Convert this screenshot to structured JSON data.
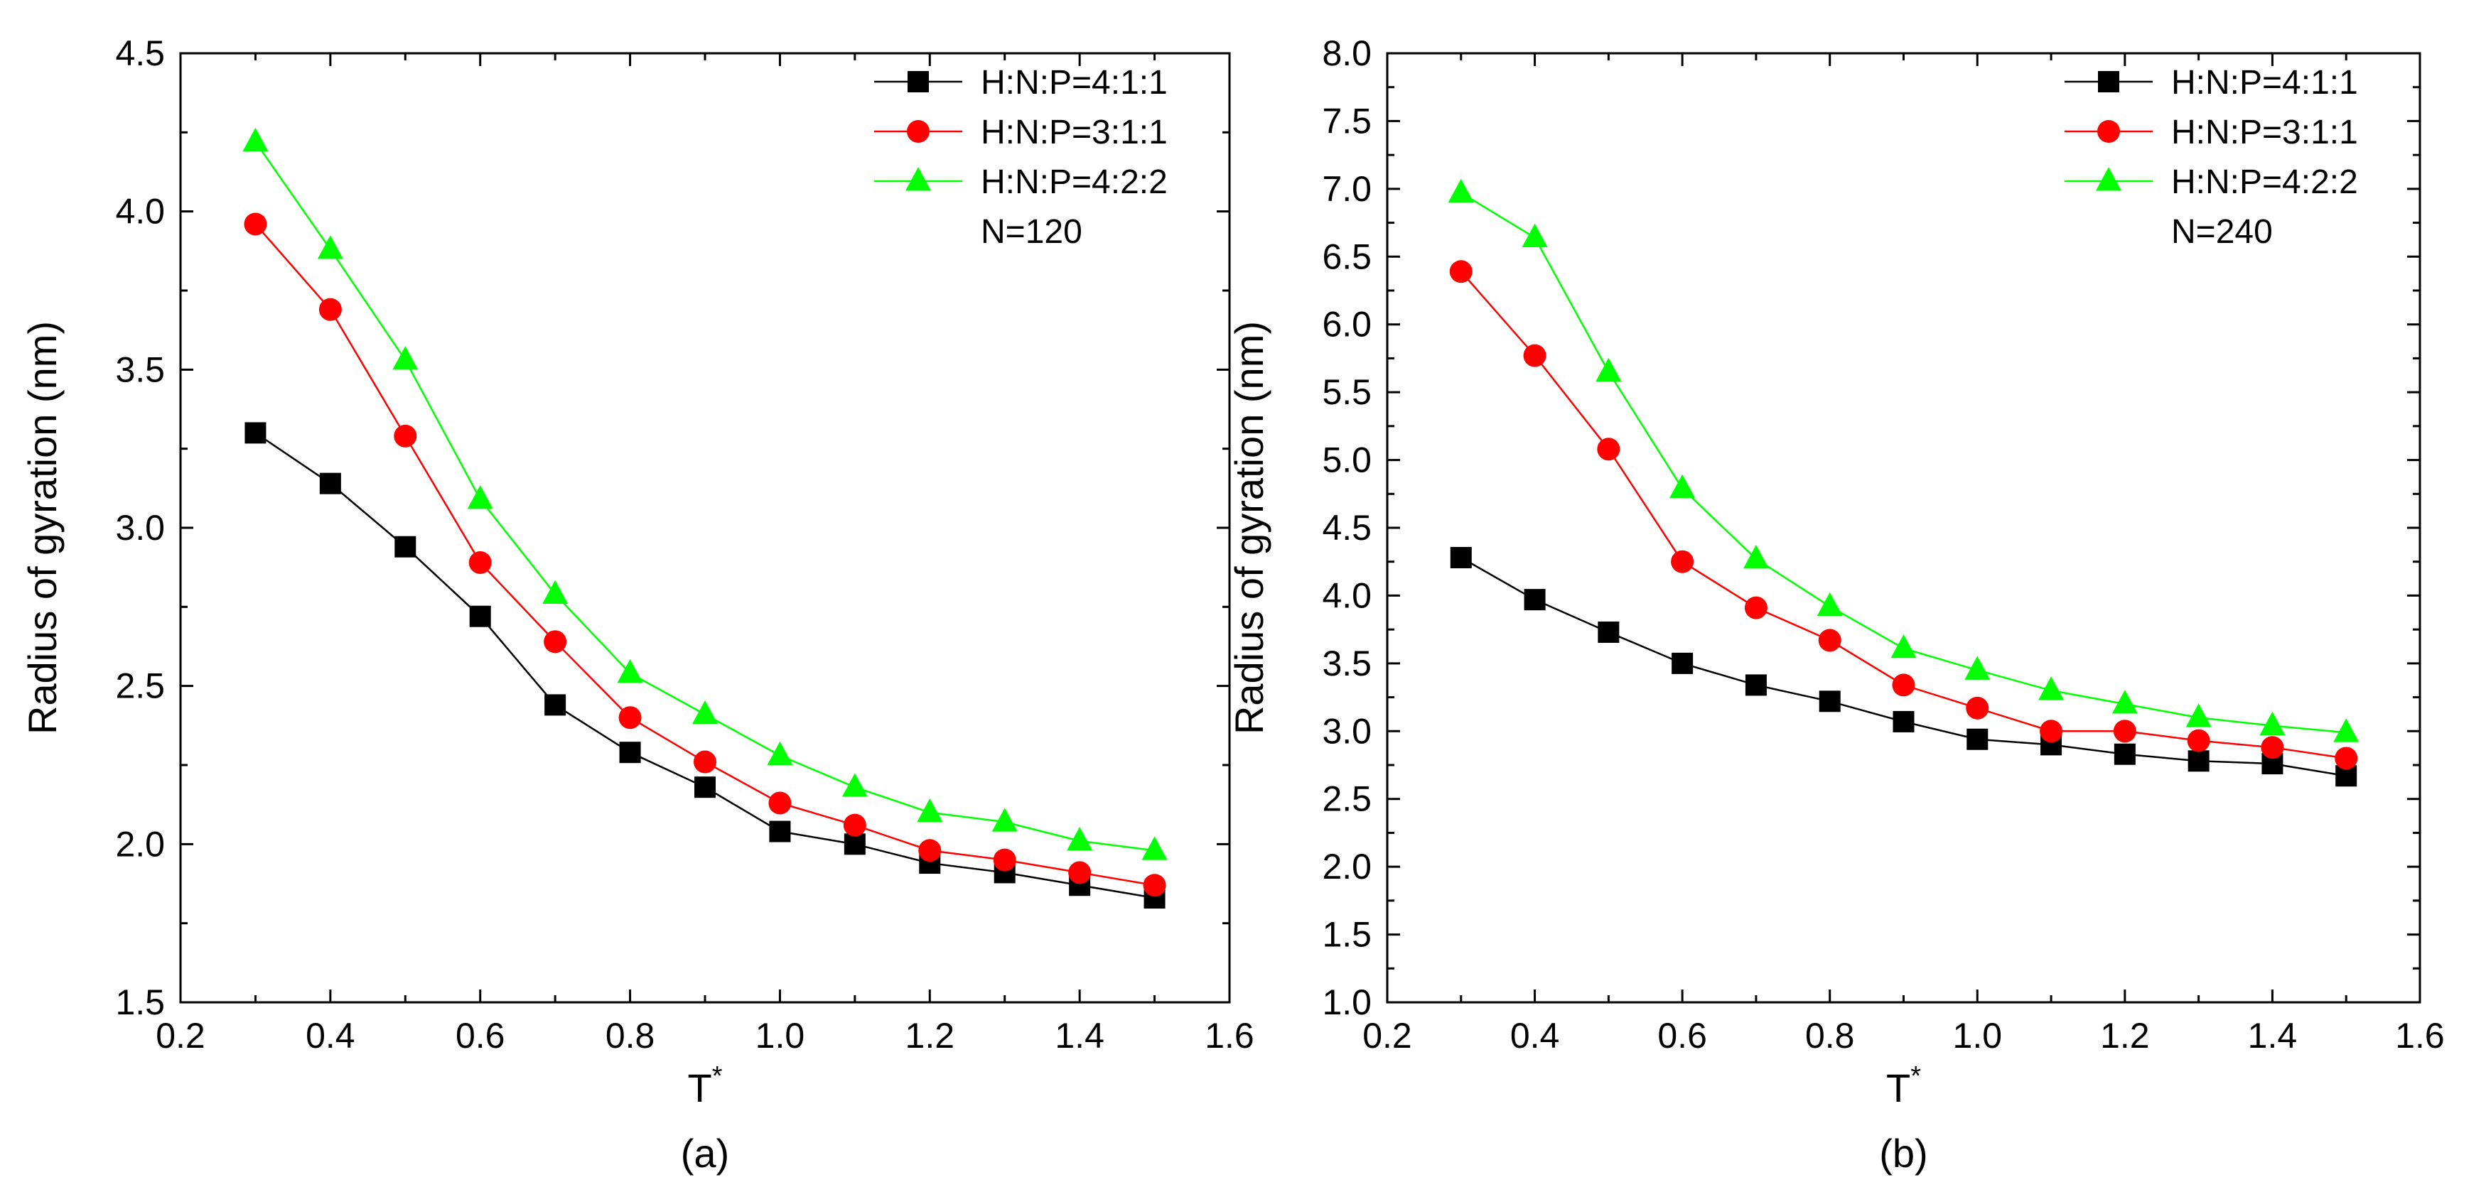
{
  "chart_data": [
    {
      "type": "line",
      "panel_label": "(a)",
      "xlabel": "T",
      "xlabel_superscript": "*",
      "ylabel": "Radius of gyration (nm)",
      "xlim": [
        0.2,
        1.6
      ],
      "ylim": [
        1.5,
        4.5
      ],
      "xticks": [
        "0.2",
        "0.4",
        "0.6",
        "0.8",
        "1.0",
        "1.2",
        "1.4",
        "1.6"
      ],
      "yticks": [
        "1.5",
        "2.0",
        "2.5",
        "3.0",
        "3.5",
        "4.0",
        "4.5"
      ],
      "legend_position": "top-right",
      "annotation": "N=120",
      "x": [
        0.3,
        0.4,
        0.5,
        0.6,
        0.7,
        0.8,
        0.9,
        1.0,
        1.1,
        1.2,
        1.3,
        1.4,
        1.5
      ],
      "series": [
        {
          "name": "H:N:P=4:1:1",
          "color": "#000000",
          "marker": "square",
          "values": [
            3.3,
            3.14,
            2.94,
            2.72,
            2.44,
            2.29,
            2.18,
            2.04,
            2.0,
            1.94,
            1.91,
            1.87,
            1.83
          ]
        },
        {
          "name": "H:N:P=3:1:1",
          "color": "#ff0000",
          "marker": "circle",
          "values": [
            3.96,
            3.69,
            3.29,
            2.89,
            2.64,
            2.4,
            2.26,
            2.13,
            2.06,
            1.98,
            1.95,
            1.91,
            1.87
          ]
        },
        {
          "name": "H:N:P=4:2:2",
          "color": "#00ff00",
          "marker": "triangle",
          "values": [
            4.22,
            3.88,
            3.53,
            3.09,
            2.79,
            2.54,
            2.41,
            2.28,
            2.18,
            2.1,
            2.07,
            2.01,
            1.98
          ]
        }
      ]
    },
    {
      "type": "line",
      "panel_label": "(b)",
      "xlabel": "T",
      "xlabel_superscript": "*",
      "ylabel": "Radius of gyration (nm)",
      "xlim": [
        0.2,
        1.6
      ],
      "ylim": [
        1.0,
        8.0
      ],
      "xticks": [
        "0.2",
        "0.4",
        "0.6",
        "0.8",
        "1.0",
        "1.2",
        "1.4",
        "1.6"
      ],
      "yticks": [
        "1.0",
        "1.5",
        "2.0",
        "2.5",
        "3.0",
        "3.5",
        "4.0",
        "4.5",
        "5.0",
        "5.5",
        "6.0",
        "6.5",
        "7.0",
        "7.5",
        "8.0"
      ],
      "legend_position": "top-right",
      "annotation": "N=240",
      "x": [
        0.3,
        0.4,
        0.5,
        0.6,
        0.7,
        0.8,
        0.9,
        1.0,
        1.1,
        1.2,
        1.3,
        1.4,
        1.5
      ],
      "series": [
        {
          "name": "H:N:P=4:1:1",
          "color": "#000000",
          "marker": "square",
          "values": [
            4.28,
            3.97,
            3.73,
            3.5,
            3.34,
            3.22,
            3.07,
            2.94,
            2.9,
            2.83,
            2.78,
            2.76,
            2.67
          ]
        },
        {
          "name": "H:N:P=3:1:1",
          "color": "#ff0000",
          "marker": "circle",
          "values": [
            6.39,
            5.77,
            5.08,
            4.25,
            3.91,
            3.67,
            3.34,
            3.17,
            3.0,
            3.0,
            2.93,
            2.88,
            2.8
          ]
        },
        {
          "name": "H:N:P=4:2:2",
          "color": "#00ff00",
          "marker": "triangle",
          "values": [
            6.97,
            6.64,
            5.65,
            4.79,
            4.27,
            3.92,
            3.61,
            3.45,
            3.3,
            3.2,
            3.1,
            3.04,
            2.99
          ]
        }
      ]
    }
  ]
}
